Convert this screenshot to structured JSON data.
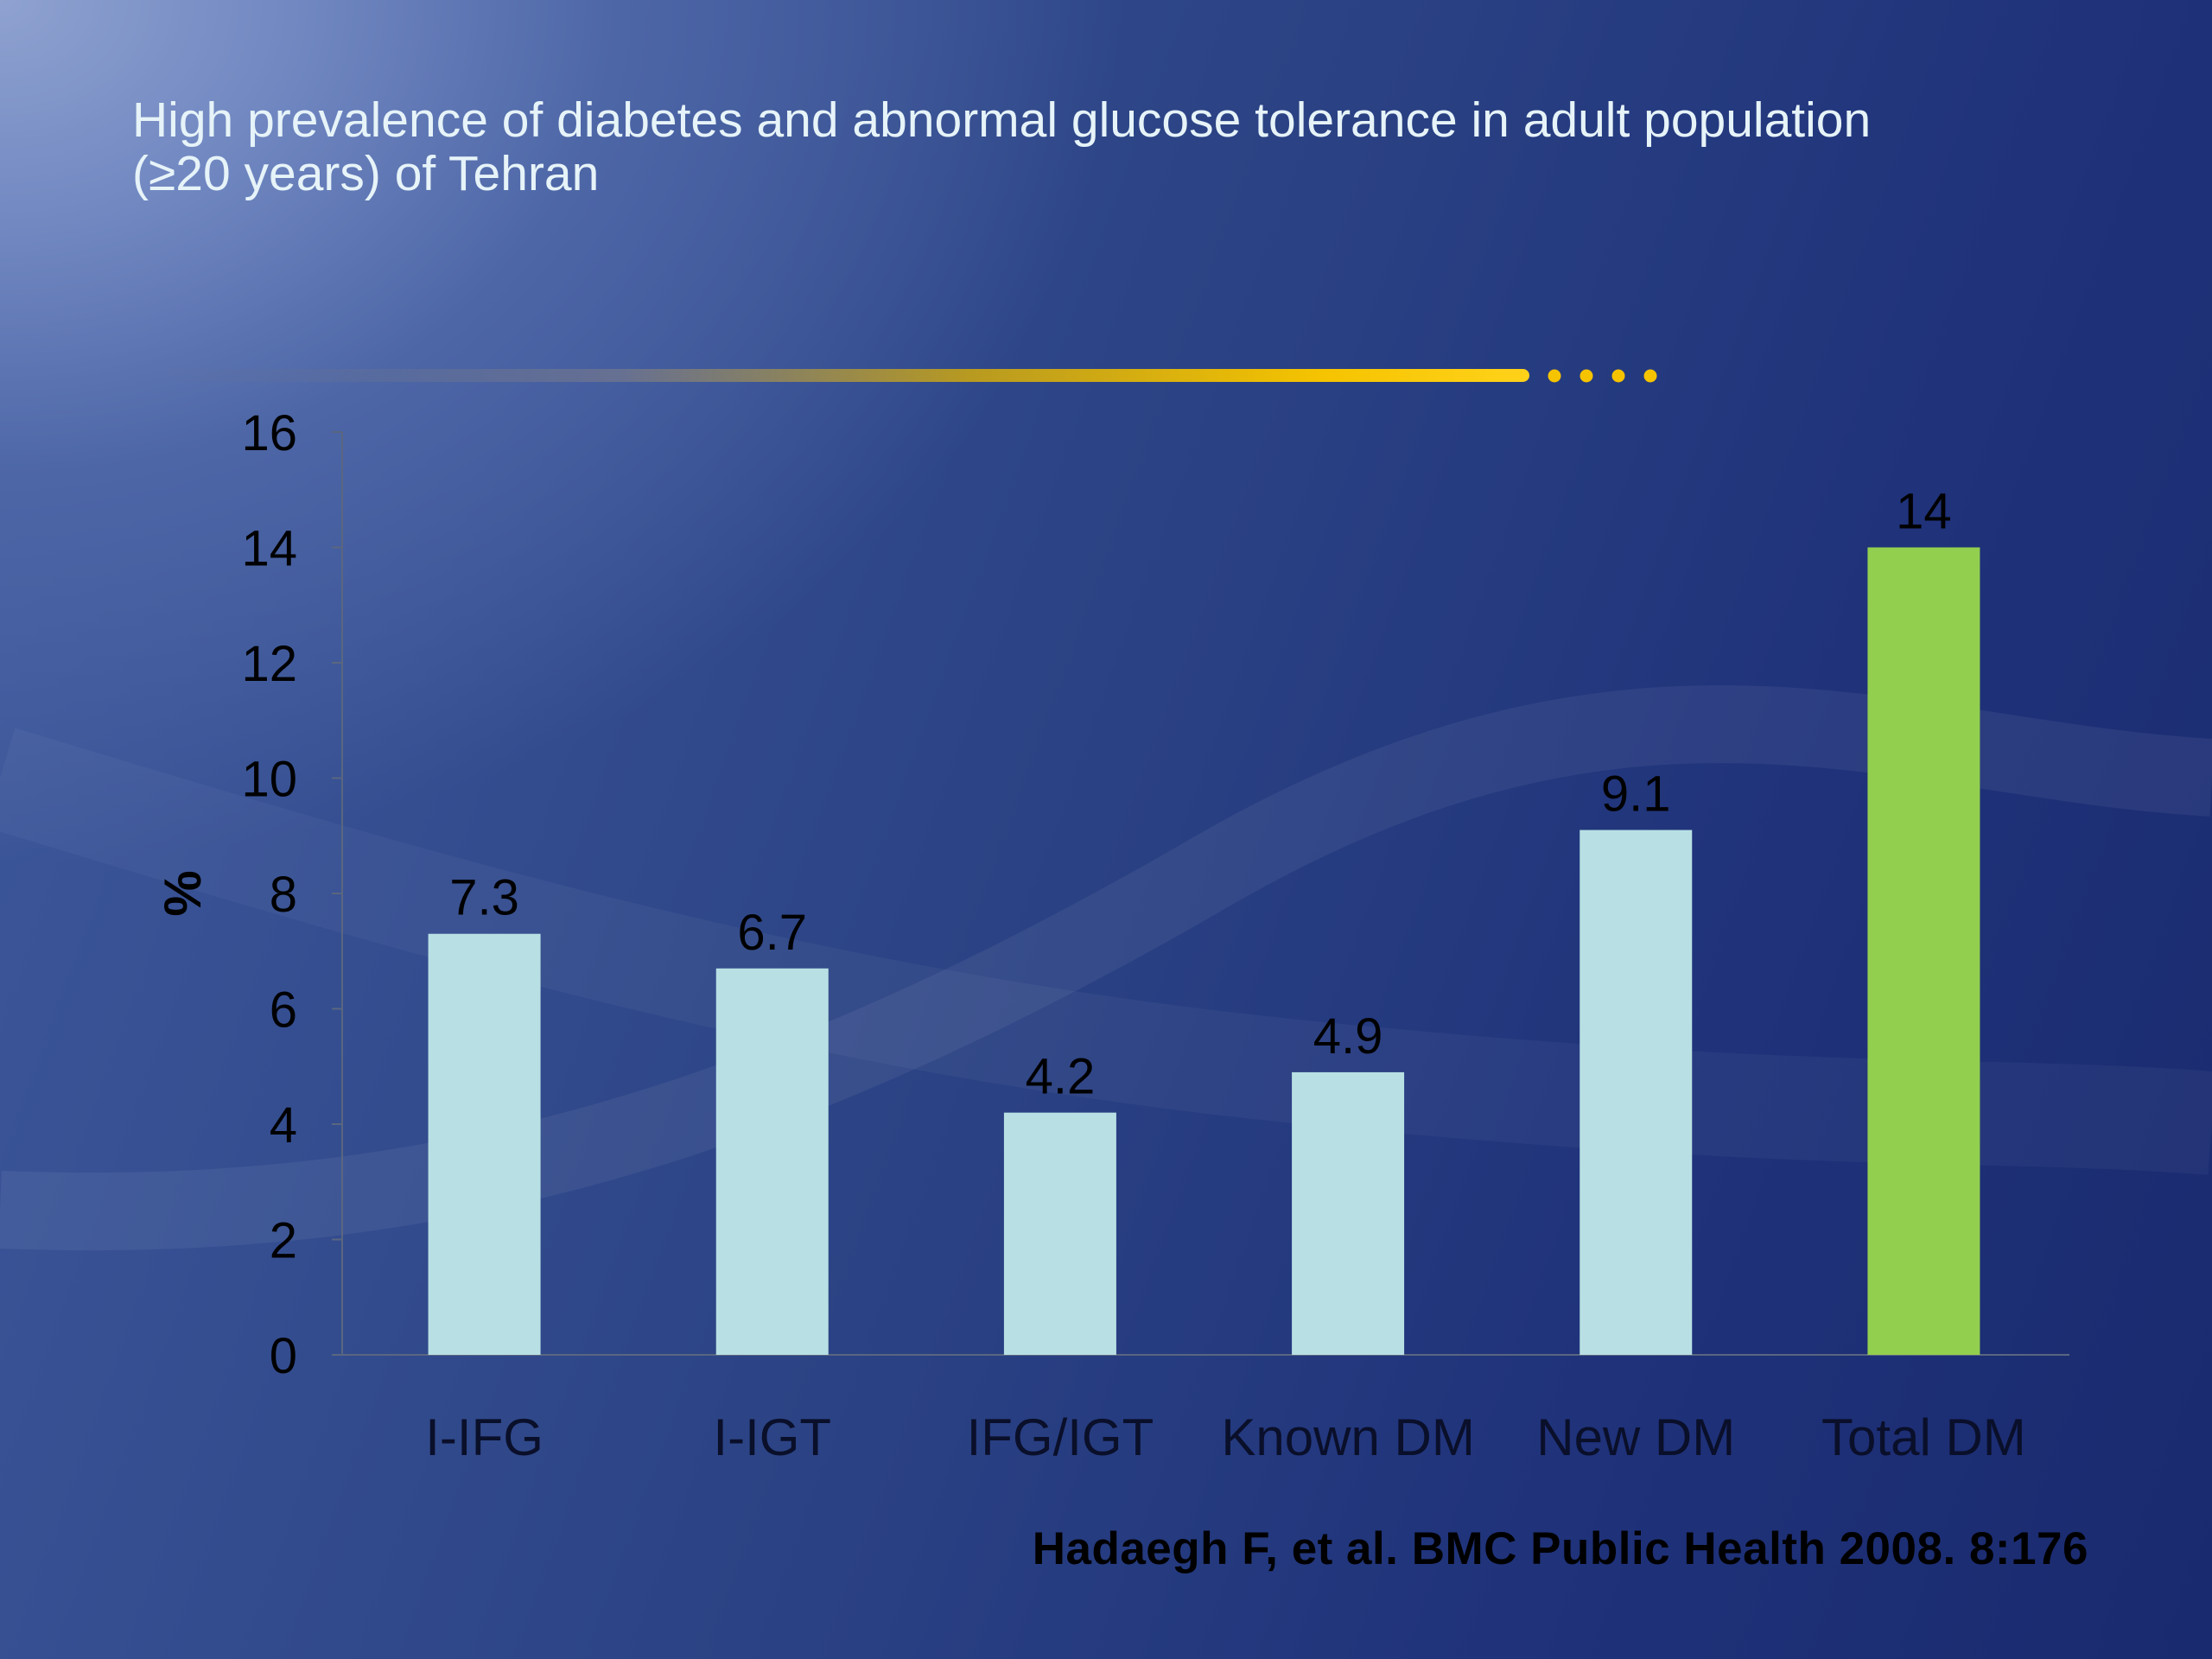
{
  "title": {
    "line1": "High prevalence of diabetes and abnormal glucose tolerance in adult population",
    "line2": "(≥20 years) of Tehran"
  },
  "citation": "Hadaegh F, et al. BMC Public Health 2008. 8:176",
  "colors": {
    "bar": "#b8e0e4",
    "highlight_bar": "#92cf4f",
    "divider_accent": "#f5c300",
    "axis": "#5a6680"
  },
  "chart_data": {
    "type": "bar",
    "title": "High prevalence of diabetes and abnormal glucose tolerance in adult population (≥20 years) of Tehran",
    "xlabel": "",
    "ylabel": "%",
    "categories": [
      "I-IFG",
      "I-IGT",
      "IFG/IGT",
      "Known DM",
      "New DM",
      "Total DM"
    ],
    "values": [
      7.3,
      6.7,
      4.2,
      4.9,
      9.1,
      14
    ],
    "data_labels": [
      "7.3",
      "6.7",
      "4.2",
      "4.9",
      "9.1",
      "14"
    ],
    "highlight_category": "Total DM",
    "ylim": [
      0,
      16
    ],
    "yticks": [
      0,
      2,
      4,
      6,
      8,
      10,
      12,
      14,
      16
    ],
    "grid": false,
    "legend": "none"
  }
}
